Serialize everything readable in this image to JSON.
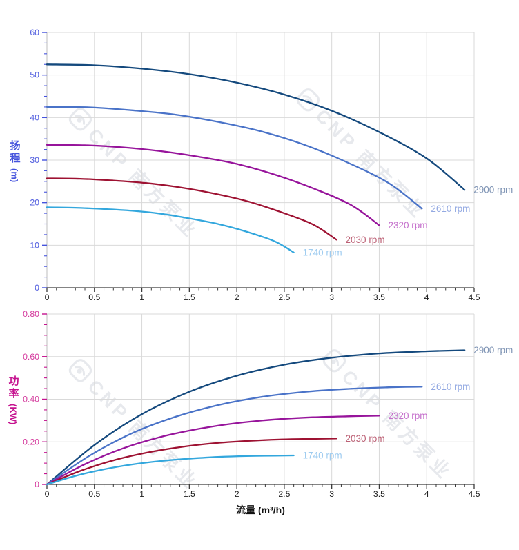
{
  "watermark": {
    "text": "CNP 南方泵业",
    "icon": "cnp-eye-logo",
    "color": "rgba(72,88,114,0.13)"
  },
  "flow_axis": {
    "label": "流量 (m³/h)",
    "min": 0,
    "max": 4.5,
    "major_step": 0.5,
    "minor_step": 0.1,
    "tick_labels": [
      "0",
      "0.5",
      "1",
      "1.5",
      "2",
      "2.5",
      "3",
      "3.5",
      "4",
      "4.5"
    ],
    "tick_color": "#3a3a3a",
    "tick_label_color": "#1f1f1f"
  },
  "chart_data": [
    {
      "id": "head",
      "type": "line",
      "title_cn": "扬程",
      "unit": "(m)",
      "xlabel": "流量 (m³/h)",
      "ylabel": "扬程 (m)",
      "axis_color": "#4553dd",
      "tick_label_color": "#4d5ade",
      "ylim": [
        0,
        60
      ],
      "y_major": 10,
      "y_minor": 2.5,
      "y_tick_labels": [
        "0",
        "10",
        "20",
        "30",
        "40",
        "50",
        "60"
      ],
      "xlim": [
        0,
        4.5
      ],
      "grid": true,
      "legend_position": "right-end-of-curves",
      "series": [
        {
          "name": "2900 rpm",
          "color": "#14497d",
          "label_color": "#8095b5",
          "points": [
            [
              0,
              52.5
            ],
            [
              0.5,
              52.3
            ],
            [
              1,
              51.5
            ],
            [
              1.5,
              50.2
            ],
            [
              2,
              48.2
            ],
            [
              2.5,
              45.4
            ],
            [
              3,
              41.6
            ],
            [
              3.5,
              36.6
            ],
            [
              4,
              30.4
            ],
            [
              4.4,
              23.0
            ]
          ]
        },
        {
          "name": "2610 rpm",
          "color": "#4a73c8",
          "label_color": "#93a9e2",
          "points": [
            [
              0,
              42.5
            ],
            [
              0.45,
              42.4
            ],
            [
              0.9,
              41.7
            ],
            [
              1.35,
              40.7
            ],
            [
              1.8,
              39.0
            ],
            [
              2.25,
              36.8
            ],
            [
              2.7,
              33.7
            ],
            [
              3.15,
              29.6
            ],
            [
              3.6,
              24.6
            ],
            [
              3.95,
              18.6
            ]
          ]
        },
        {
          "name": "2320 rpm",
          "color": "#97149b",
          "label_color": "#c46fcb",
          "points": [
            [
              0,
              33.6
            ],
            [
              0.4,
              33.5
            ],
            [
              0.8,
              33.0
            ],
            [
              1.2,
              32.1
            ],
            [
              1.6,
              30.8
            ],
            [
              2,
              29.1
            ],
            [
              2.4,
              26.6
            ],
            [
              2.8,
              23.4
            ],
            [
              3.2,
              19.5
            ],
            [
              3.5,
              14.7
            ]
          ]
        },
        {
          "name": "2030 rpm",
          "color": "#9e1232",
          "label_color": "#bc6075",
          "points": [
            [
              0,
              25.7
            ],
            [
              0.35,
              25.6
            ],
            [
              0.7,
              25.2
            ],
            [
              1.05,
              24.6
            ],
            [
              1.4,
              23.6
            ],
            [
              1.75,
              22.2
            ],
            [
              2.1,
              20.4
            ],
            [
              2.45,
              17.9
            ],
            [
              2.8,
              14.9
            ],
            [
              3.05,
              11.3
            ]
          ]
        },
        {
          "name": "1740 rpm",
          "color": "#33a7dd",
          "label_color": "#9fccf0",
          "points": [
            [
              0,
              18.9
            ],
            [
              0.3,
              18.8
            ],
            [
              0.6,
              18.5
            ],
            [
              0.9,
              18.1
            ],
            [
              1.2,
              17.4
            ],
            [
              1.5,
              16.3
            ],
            [
              1.8,
              15.0
            ],
            [
              2.1,
              13.2
            ],
            [
              2.4,
              10.9
            ],
            [
              2.6,
              8.3
            ]
          ]
        }
      ]
    },
    {
      "id": "power",
      "type": "line",
      "title_cn": "功率",
      "unit": "(KW)",
      "xlabel": "流量 (m³/h)",
      "ylabel": "功率 (KW)",
      "axis_color": "#c5128f",
      "tick_label_color": "#d4389c",
      "ylim": [
        0,
        0.8
      ],
      "y_major": 0.2,
      "y_minor": 0.05,
      "y_tick_labels": [
        "0",
        "0.20",
        "0.40",
        "0.60",
        "0.80"
      ],
      "xlim": [
        0,
        4.5
      ],
      "grid": true,
      "legend_position": "right-end-of-curves",
      "series": [
        {
          "name": "2900 rpm",
          "color": "#14497d",
          "label_color": "#8095b5",
          "points": [
            [
              0,
              0
            ],
            [
              0.5,
              0.185
            ],
            [
              1,
              0.33
            ],
            [
              1.5,
              0.435
            ],
            [
              2,
              0.51
            ],
            [
              2.5,
              0.562
            ],
            [
              3,
              0.595
            ],
            [
              3.5,
              0.615
            ],
            [
              4,
              0.625
            ],
            [
              4.4,
              0.63
            ]
          ]
        },
        {
          "name": "2610 rpm",
          "color": "#4a73c8",
          "label_color": "#93a9e2",
          "points": [
            [
              0,
              0
            ],
            [
              0.45,
              0.135
            ],
            [
              0.9,
              0.241
            ],
            [
              1.35,
              0.317
            ],
            [
              1.8,
              0.372
            ],
            [
              2.25,
              0.41
            ],
            [
              2.7,
              0.434
            ],
            [
              3.15,
              0.448
            ],
            [
              3.6,
              0.456
            ],
            [
              3.95,
              0.459
            ]
          ]
        },
        {
          "name": "2320 rpm",
          "color": "#97149b",
          "label_color": "#c46fcb",
          "points": [
            [
              0,
              0
            ],
            [
              0.4,
              0.095
            ],
            [
              0.8,
              0.169
            ],
            [
              1.2,
              0.223
            ],
            [
              1.6,
              0.261
            ],
            [
              2,
              0.288
            ],
            [
              2.4,
              0.305
            ],
            [
              2.8,
              0.315
            ],
            [
              3.2,
              0.32
            ],
            [
              3.5,
              0.323
            ]
          ]
        },
        {
          "name": "2030 rpm",
          "color": "#9e1232",
          "label_color": "#bc6075",
          "points": [
            [
              0,
              0
            ],
            [
              0.35,
              0.063
            ],
            [
              0.7,
              0.113
            ],
            [
              1.05,
              0.149
            ],
            [
              1.4,
              0.175
            ],
            [
              1.75,
              0.193
            ],
            [
              2.1,
              0.204
            ],
            [
              2.45,
              0.211
            ],
            [
              2.8,
              0.214
            ],
            [
              3.05,
              0.216
            ]
          ]
        },
        {
          "name": "1740 rpm",
          "color": "#33a7dd",
          "label_color": "#9fccf0",
          "points": [
            [
              0,
              0
            ],
            [
              0.3,
              0.04
            ],
            [
              0.6,
              0.071
            ],
            [
              0.9,
              0.094
            ],
            [
              1.2,
              0.11
            ],
            [
              1.5,
              0.121
            ],
            [
              1.8,
              0.129
            ],
            [
              2.1,
              0.133
            ],
            [
              2.4,
              0.135
            ],
            [
              2.6,
              0.136
            ]
          ]
        }
      ]
    }
  ]
}
